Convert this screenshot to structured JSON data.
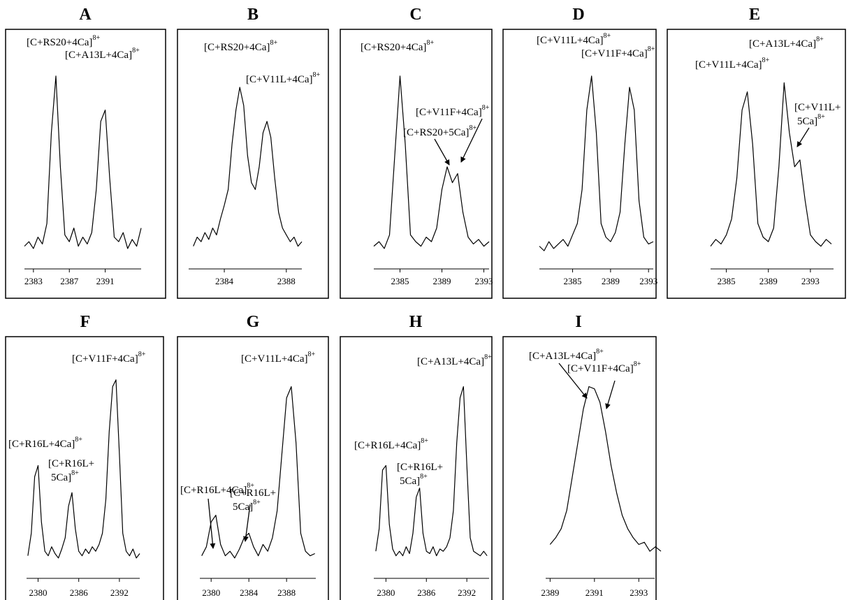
{
  "chart_data": [
    {
      "type": "line",
      "title": "A",
      "color": "#000000",
      "xlim": [
        2382,
        2395
      ],
      "xticks": [
        2383,
        2387,
        2391
      ],
      "ylim": [
        0,
        100
      ],
      "x": [
        2382,
        2382.5,
        2383,
        2383.5,
        2384,
        2384.5,
        2385,
        2385.5,
        2386,
        2386.5,
        2387,
        2387.5,
        2388,
        2388.5,
        2389,
        2389.5,
        2390,
        2390.5,
        2391,
        2391.5,
        2392,
        2392.5,
        2393,
        2393.5,
        2394,
        2394.5,
        2395
      ],
      "values": [
        10,
        12,
        9,
        14,
        11,
        20,
        60,
        85,
        45,
        15,
        12,
        18,
        10,
        14,
        11,
        16,
        35,
        65,
        70,
        40,
        14,
        12,
        16,
        9,
        13,
        10,
        18
      ],
      "annotations": [
        {
          "lines": [
            "[C+RS20+4Ca]"
          ],
          "charge": "8+"
        },
        {
          "lines": [
            "[C+A13L+4Ca]"
          ],
          "charge": "8+"
        }
      ]
    },
    {
      "type": "line",
      "title": "B",
      "color": "#000000",
      "xlim": [
        2381.7,
        2389
      ],
      "xticks": [
        2384,
        2388
      ],
      "ylim": [
        0,
        100
      ],
      "x": [
        2382,
        2382.25,
        2382.5,
        2382.75,
        2383,
        2383.25,
        2383.5,
        2383.75,
        2384,
        2384.25,
        2384.5,
        2384.75,
        2385,
        2385.25,
        2385.5,
        2385.75,
        2386,
        2386.25,
        2386.5,
        2386.75,
        2387,
        2387.25,
        2387.5,
        2387.75,
        2388,
        2388.25,
        2388.5,
        2388.75,
        2389
      ],
      "values": [
        10,
        14,
        12,
        16,
        13,
        18,
        15,
        22,
        28,
        35,
        55,
        70,
        80,
        72,
        50,
        38,
        35,
        45,
        60,
        65,
        58,
        40,
        25,
        18,
        15,
        12,
        14,
        10,
        12
      ],
      "annotations": [
        {
          "lines": [
            "[C+RS20+4Ca]"
          ],
          "charge": "8+"
        },
        {
          "lines": [
            "[C+V11L+4Ca]"
          ],
          "charge": "8+"
        }
      ]
    },
    {
      "type": "line",
      "title": "C",
      "color": "#000000",
      "xlim": [
        2382.5,
        2393.5
      ],
      "xticks": [
        2385,
        2389,
        2393
      ],
      "ylim": [
        0,
        100
      ],
      "x": [
        2382.5,
        2383,
        2383.5,
        2384,
        2384.5,
        2385,
        2385.5,
        2386,
        2386.5,
        2387,
        2387.5,
        2388,
        2388.5,
        2389,
        2389.5,
        2390,
        2390.5,
        2391,
        2391.5,
        2392,
        2392.5,
        2393,
        2393.5
      ],
      "values": [
        10,
        12,
        9,
        15,
        50,
        85,
        55,
        15,
        12,
        10,
        14,
        12,
        18,
        35,
        45,
        38,
        42,
        25,
        14,
        11,
        13,
        10,
        12
      ],
      "annotations": [
        {
          "lines": [
            "[C+RS20+4Ca]"
          ],
          "charge": "8+"
        },
        {
          "lines": [
            "[C+V11F+4Ca]"
          ],
          "charge": "8+"
        },
        {
          "lines": [
            "[C+RS20+5Ca]"
          ],
          "charge": "8+"
        }
      ]
    },
    {
      "type": "line",
      "title": "D",
      "color": "#000000",
      "xlim": [
        2381.5,
        2393.5
      ],
      "xticks": [
        2385,
        2389,
        2393
      ],
      "ylim": [
        0,
        100
      ],
      "x": [
        2381.5,
        2382,
        2382.5,
        2383,
        2383.5,
        2384,
        2384.5,
        2385,
        2385.5,
        2386,
        2386.5,
        2387,
        2387.5,
        2388,
        2388.5,
        2389,
        2389.5,
        2390,
        2390.5,
        2391,
        2391.5,
        2392,
        2392.5,
        2393,
        2393.5
      ],
      "values": [
        10,
        8,
        12,
        9,
        11,
        13,
        10,
        15,
        20,
        35,
        70,
        85,
        60,
        20,
        14,
        12,
        16,
        25,
        55,
        80,
        70,
        30,
        14,
        11,
        12
      ],
      "annotations": [
        {
          "lines": [
            "[C+V11L+4Ca]"
          ],
          "charge": "8+"
        },
        {
          "lines": [
            "[C+V11F+4Ca]"
          ],
          "charge": "8+"
        }
      ]
    },
    {
      "type": "line",
      "title": "E",
      "color": "#000000",
      "xlim": [
        2383.5,
        2395.2
      ],
      "xticks": [
        2385,
        2389,
        2393
      ],
      "ylim": [
        0,
        100
      ],
      "x": [
        2383.5,
        2384,
        2384.5,
        2385,
        2385.5,
        2386,
        2386.5,
        2387,
        2387.5,
        2388,
        2388.5,
        2389,
        2389.5,
        2390,
        2390.5,
        2391,
        2391.5,
        2392,
        2392.5,
        2393,
        2393.5,
        2394,
        2394.5,
        2395
      ],
      "values": [
        10,
        13,
        11,
        15,
        22,
        40,
        70,
        78,
        55,
        20,
        14,
        12,
        18,
        45,
        82,
        60,
        45,
        48,
        30,
        15,
        12,
        10,
        13,
        11
      ],
      "annotations": [
        {
          "lines": [
            "[C+A13L+4Ca]"
          ],
          "charge": "8+"
        },
        {
          "lines": [
            "[C+V11L+4Ca]"
          ],
          "charge": "8+"
        },
        {
          "lines": [
            "[C+V11L+",
            "5Ca]"
          ],
          "charge": "8+"
        }
      ]
    },
    {
      "type": "line",
      "title": "F",
      "color": "#000000",
      "xlim": [
        2378.3,
        2395
      ],
      "xticks": [
        2380,
        2386,
        2392
      ],
      "ylim": [
        0,
        100
      ],
      "x": [
        2378.5,
        2379,
        2379.5,
        2380,
        2380.5,
        2381,
        2381.5,
        2382,
        2382.5,
        2383,
        2383.5,
        2384,
        2384.5,
        2385,
        2385.5,
        2386,
        2386.5,
        2387,
        2387.5,
        2388,
        2388.5,
        2389,
        2389.5,
        2390,
        2390.5,
        2391,
        2391.5,
        2392,
        2392.5,
        2393,
        2393.5,
        2394,
        2394.5,
        2395
      ],
      "values": [
        10,
        20,
        45,
        50,
        25,
        12,
        10,
        14,
        11,
        9,
        13,
        18,
        32,
        38,
        22,
        12,
        10,
        13,
        11,
        14,
        12,
        15,
        20,
        35,
        65,
        85,
        88,
        55,
        20,
        12,
        10,
        13,
        9,
        11
      ],
      "annotations": [
        {
          "lines": [
            "[C+V11F+4Ca]"
          ],
          "charge": "8+"
        },
        {
          "lines": [
            "[C+R16L+4Ca]"
          ],
          "charge": "8+"
        },
        {
          "lines": [
            "[C+R16L+",
            "5Ca]"
          ],
          "charge": "8+"
        }
      ]
    },
    {
      "type": "line",
      "title": "G",
      "color": "#000000",
      "xlim": [
        2378.8,
        2391.1
      ],
      "xticks": [
        2380,
        2384,
        2388
      ],
      "ylim": [
        0,
        100
      ],
      "x": [
        2379,
        2379.5,
        2380,
        2380.5,
        2381,
        2381.5,
        2382,
        2382.5,
        2383,
        2383.5,
        2384,
        2384.5,
        2385,
        2385.5,
        2386,
        2386.5,
        2387,
        2387.5,
        2388,
        2388.5,
        2389,
        2389.5,
        2390,
        2390.5,
        2391
      ],
      "values": [
        10,
        14,
        25,
        28,
        15,
        10,
        12,
        9,
        13,
        18,
        20,
        14,
        10,
        15,
        12,
        18,
        30,
        55,
        80,
        85,
        60,
        20,
        12,
        10,
        11
      ],
      "annotations": [
        {
          "lines": [
            "[C+V11L+4Ca]"
          ],
          "charge": "8+"
        },
        {
          "lines": [
            "[C+R16L+4Ca]"
          ],
          "charge": "8+"
        },
        {
          "lines": [
            "[C+R16L+",
            "5Ca]"
          ],
          "charge": "8+"
        }
      ]
    },
    {
      "type": "line",
      "title": "H",
      "color": "#000000",
      "xlim": [
        2378.2,
        2395.3
      ],
      "xticks": [
        2380,
        2386,
        2392
      ],
      "ylim": [
        0,
        100
      ],
      "x": [
        2378.5,
        2379,
        2379.5,
        2380,
        2380.5,
        2381,
        2381.5,
        2382,
        2382.5,
        2383,
        2383.5,
        2384,
        2384.5,
        2385,
        2385.5,
        2386,
        2386.5,
        2387,
        2387.5,
        2388,
        2388.5,
        2389,
        2389.5,
        2390,
        2390.5,
        2391,
        2391.5,
        2392,
        2392.5,
        2393,
        2393.5,
        2394,
        2394.5,
        2395
      ],
      "values": [
        12,
        22,
        48,
        50,
        24,
        13,
        10,
        12,
        10,
        14,
        11,
        20,
        36,
        40,
        20,
        12,
        11,
        14,
        10,
        13,
        12,
        14,
        18,
        30,
        60,
        80,
        85,
        50,
        18,
        12,
        11,
        10,
        12,
        10
      ],
      "annotations": [
        {
          "lines": [
            "[C+A13L+4Ca]"
          ],
          "charge": "8+"
        },
        {
          "lines": [
            "[C+R16L+4Ca]"
          ],
          "charge": "8+"
        },
        {
          "lines": [
            "[C+R16L+",
            "5Ca]"
          ],
          "charge": "8+"
        }
      ]
    },
    {
      "type": "line",
      "title": "I",
      "color": "#000000",
      "xlim": [
        2388.8,
        2394
      ],
      "xticks": [
        2389,
        2391,
        2393
      ],
      "ylim": [
        0,
        100
      ],
      "x": [
        2389,
        2389.25,
        2389.5,
        2389.75,
        2390,
        2390.25,
        2390.5,
        2390.75,
        2391,
        2391.25,
        2391.5,
        2391.75,
        2392,
        2392.25,
        2392.5,
        2392.75,
        2393,
        2393.25,
        2393.5,
        2393.75,
        2394
      ],
      "values": [
        15,
        18,
        22,
        30,
        45,
        60,
        75,
        85,
        84,
        78,
        65,
        50,
        38,
        28,
        22,
        18,
        15,
        16,
        12,
        14,
        12
      ],
      "annotations": [
        {
          "lines": [
            "[C+A13L+4Ca]"
          ],
          "charge": "8+"
        },
        {
          "lines": [
            "[C+V11F+4Ca]"
          ],
          "charge": "8+"
        }
      ]
    }
  ]
}
